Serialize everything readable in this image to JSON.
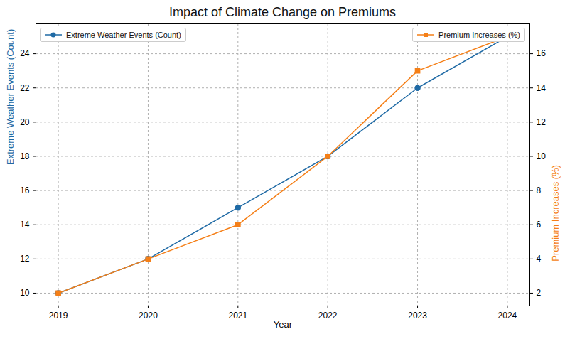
{
  "chart_data": {
    "type": "line",
    "title": "Impact of Climate Change on Premiums",
    "x_label": "Year",
    "y_label": "Extreme Weather Events (Count)",
    "y2_label": "Premium Increases (%)",
    "x": [
      2019,
      2020,
      2021,
      2022,
      2023,
      2024
    ],
    "xlim": [
      2018.75,
      2024.25
    ],
    "xticks": [
      2019,
      2020,
      2021,
      2022,
      2023,
      2024
    ],
    "ylim": [
      9.25,
      25.75
    ],
    "yticks": [
      10,
      12,
      14,
      16,
      18,
      20,
      22,
      24
    ],
    "y2lim": [
      1.25,
      17.75
    ],
    "y2ticks": [
      2,
      4,
      6,
      8,
      10,
      12,
      14,
      16
    ],
    "grid": true,
    "legend": "top",
    "series": [
      {
        "name": "Extreme Weather Events (Count)",
        "color": "#1f6aa5",
        "marker": "circle",
        "line_style": "solid",
        "values": [
          10,
          12,
          15,
          18,
          22,
          25
        ]
      },
      {
        "name": "Premium Increases (%)",
        "color": "#f57f17",
        "marker": "square",
        "line_style": "solid",
        "axis": "y2",
        "values": [
          2,
          4,
          6,
          10,
          15,
          17
        ]
      }
    ]
  }
}
